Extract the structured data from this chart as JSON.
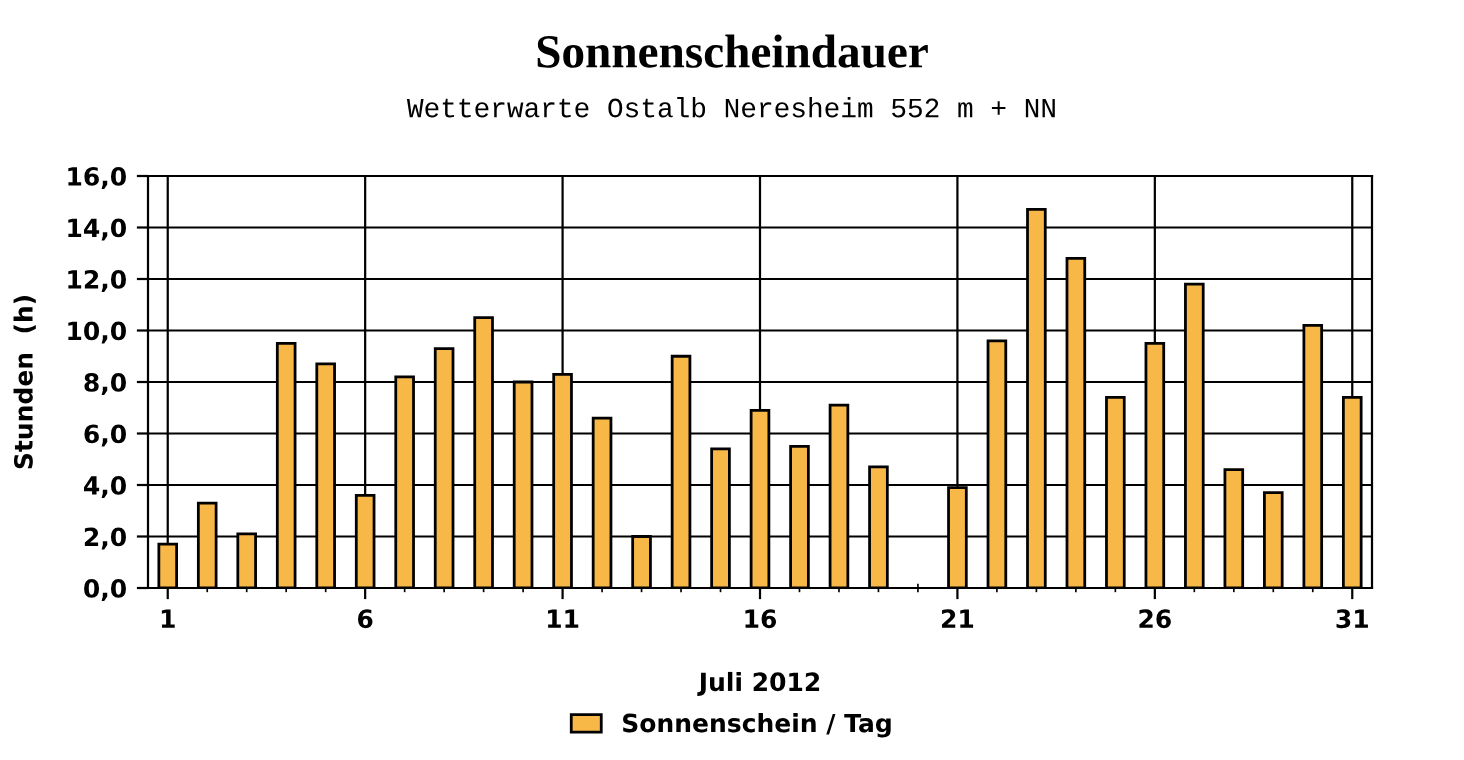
{
  "chart_data": {
    "type": "bar",
    "title": "Sonnenscheindauer",
    "subtitle": "Wetterwarte Ostalb Neresheim 552 m + NN",
    "xlabel": "Juli 2012",
    "ylabel": "Stunden  (h)",
    "x": [
      1,
      2,
      3,
      4,
      5,
      6,
      7,
      8,
      9,
      10,
      11,
      12,
      13,
      14,
      15,
      16,
      17,
      18,
      19,
      20,
      21,
      22,
      23,
      24,
      25,
      26,
      27,
      28,
      29,
      30,
      31
    ],
    "series": [
      {
        "name": "Sonnenschein / Tag",
        "color": "#f8b848",
        "values": [
          1.7,
          3.3,
          2.1,
          9.5,
          8.7,
          3.6,
          8.2,
          9.3,
          10.5,
          8.0,
          8.3,
          6.6,
          2.0,
          9.0,
          5.4,
          6.9,
          5.5,
          7.1,
          4.7,
          null,
          3.9,
          9.6,
          14.7,
          12.8,
          7.4,
          9.5,
          11.8,
          4.6,
          3.7,
          10.2,
          7.4
        ]
      }
    ],
    "xlim": [
      0.5,
      31.5
    ],
    "xticks": [
      1,
      6,
      11,
      16,
      21,
      26,
      31
    ],
    "ylim": [
      0,
      16
    ],
    "yticks": [
      {
        "value": 0,
        "label": "0,0"
      },
      {
        "value": 2,
        "label": "2,0"
      },
      {
        "value": 4,
        "label": "4,0"
      },
      {
        "value": 6,
        "label": "6,0"
      },
      {
        "value": 8,
        "label": "8,0"
      },
      {
        "value": 10,
        "label": "10,0"
      },
      {
        "value": 12,
        "label": "12,0"
      },
      {
        "value": 14,
        "label": "14,0"
      },
      {
        "value": 16,
        "label": "16,0"
      }
    ],
    "grid": true,
    "legend": "bottom"
  }
}
